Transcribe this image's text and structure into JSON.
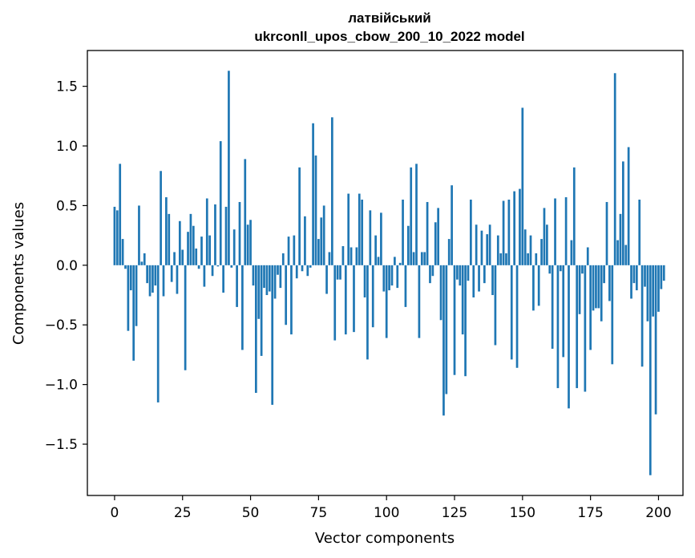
{
  "chart_data": {
    "type": "bar",
    "title_line1": "латвійський",
    "title_line2": "ukrconll_upos_cbow_200_10_2022 model",
    "xlabel": "Vector components",
    "ylabel": "Components values",
    "xlim": [
      -10,
      209
    ],
    "ylim": [
      -1.93,
      1.8
    ],
    "xticks": [
      0,
      25,
      50,
      75,
      100,
      125,
      150,
      175,
      200
    ],
    "xtick_labels": [
      "0",
      "25",
      "50",
      "75",
      "100",
      "125",
      "150",
      "175",
      "200"
    ],
    "yticks": [
      -1.5,
      -1.0,
      -0.5,
      0.0,
      0.5,
      1.0,
      1.5
    ],
    "ytick_labels": [
      "−1.5",
      "−1.0",
      "−0.5",
      "0.0",
      "0.5",
      "1.0",
      "1.5"
    ],
    "grid": false,
    "bar_color": "#1f77b4",
    "values": [
      0.49,
      0.46,
      0.85,
      0.22,
      -0.03,
      -0.55,
      -0.21,
      -0.8,
      -0.51,
      0.5,
      0.03,
      0.1,
      -0.15,
      -0.26,
      -0.23,
      -0.17,
      -1.15,
      0.79,
      -0.26,
      0.57,
      0.43,
      -0.14,
      0.11,
      -0.24,
      0.37,
      0.13,
      -0.88,
      0.28,
      0.43,
      0.33,
      0.14,
      -0.03,
      0.24,
      -0.18,
      0.56,
      0.25,
      -0.09,
      0.51,
      -0.01,
      1.04,
      -0.23,
      0.49,
      1.63,
      -0.02,
      0.3,
      -0.35,
      0.53,
      -0.71,
      0.89,
      0.34,
      0.38,
      -0.17,
      -1.07,
      -0.45,
      -0.76,
      -0.19,
      -0.25,
      -0.22,
      -1.17,
      -0.28,
      -0.08,
      -0.19,
      0.1,
      -0.5,
      0.24,
      -0.58,
      0.25,
      -0.11,
      0.82,
      -0.05,
      0.41,
      -0.09,
      -0.02,
      1.19,
      0.92,
      0.22,
      0.4,
      0.5,
      -0.24,
      0.11,
      1.24,
      -0.63,
      -0.12,
      -0.12,
      0.16,
      -0.58,
      0.6,
      0.15,
      -0.56,
      0.15,
      0.6,
      0.55,
      -0.27,
      -0.79,
      0.46,
      -0.52,
      0.25,
      0.07,
      0.44,
      -0.22,
      -0.61,
      -0.21,
      -0.17,
      0.07,
      -0.19,
      0.02,
      0.55,
      -0.35,
      0.33,
      0.82,
      0.11,
      0.85,
      -0.61,
      0.11,
      0.11,
      0.53,
      -0.15,
      -0.09,
      0.36,
      0.48,
      -0.46,
      -1.26,
      -1.08,
      0.22,
      0.67,
      -0.92,
      -0.12,
      -0.17,
      -0.58,
      -0.93,
      -0.13,
      0.55,
      -0.27,
      0.34,
      -0.22,
      0.29,
      -0.15,
      0.26,
      0.34,
      -0.25,
      -0.67,
      0.25,
      0.1,
      0.54,
      0.1,
      0.55,
      -0.79,
      0.62,
      -0.86,
      0.64,
      1.32,
      0.3,
      0.1,
      0.25,
      -0.38,
      0.1,
      -0.34,
      0.22,
      0.48,
      0.34,
      -0.07,
      -0.7,
      0.56,
      -1.03,
      -0.05,
      -0.77,
      0.57,
      -1.2,
      0.21,
      0.82,
      -1.03,
      -0.41,
      -0.07,
      -1.06,
      0.15,
      -0.71,
      -0.38,
      -0.36,
      -0.36,
      -0.47,
      -0.15,
      0.53,
      -0.3,
      -0.83,
      1.61,
      0.21,
      0.43,
      0.87,
      0.17,
      0.99,
      -0.28,
      -0.15,
      -0.21,
      0.55,
      -0.85,
      -0.18,
      -0.47,
      -1.76,
      -0.43,
      -1.25,
      -0.39,
      -0.2,
      -0.13
    ]
  }
}
